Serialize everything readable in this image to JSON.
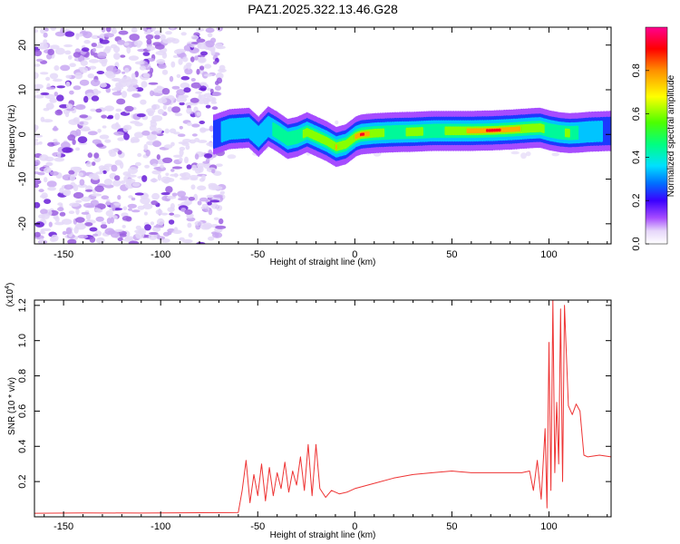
{
  "title": "PAZ1.2025.322.13.46.G28",
  "chart_data": [
    {
      "type": "heatmap",
      "name": "spectrogram",
      "xlabel": "Height of straight line (km)",
      "ylabel": "Frequency (Hz)",
      "xlim": [
        -165,
        132
      ],
      "ylim": [
        -24.5,
        24
      ],
      "xticks": [
        -150,
        -100,
        -50,
        0,
        50,
        100
      ],
      "xtick_labels": [
        "-150",
        "-100",
        "-50",
        "0",
        "50",
        "100"
      ],
      "yticks": [
        -20,
        -10,
        0,
        10,
        20
      ],
      "ytick_labels": [
        "-20",
        "-10",
        "0",
        "10",
        "20"
      ],
      "noise_region_x": [
        -165,
        -68
      ],
      "signal_track": {
        "x": [
          -73,
          -65,
          -55,
          -50,
          -45,
          -40,
          -35,
          -30,
          -25,
          -20,
          -15,
          -10,
          -5,
          0,
          3,
          10,
          20,
          30,
          40,
          50,
          60,
          70,
          80,
          90,
          95,
          100,
          105,
          110,
          115,
          120,
          132
        ],
        "freq": [
          0,
          1.2,
          1.5,
          -0.5,
          1.8,
          0.5,
          -1,
          -0.5,
          0.5,
          -0.5,
          -1.5,
          -2.8,
          -2.2,
          -0.5,
          0,
          0.3,
          0.5,
          0.6,
          0.8,
          0.8,
          0.8,
          0.9,
          1.1,
          1.4,
          1.5,
          0.9,
          0.5,
          0.3,
          0.4,
          0.6,
          0.8
        ],
        "amplitude": [
          0.3,
          0.35,
          0.4,
          0.35,
          0.4,
          0.45,
          0.5,
          0.55,
          0.6,
          0.65,
          0.7,
          0.75,
          0.7,
          0.75,
          0.95,
          0.6,
          0.55,
          0.6,
          0.55,
          0.6,
          0.8,
          0.95,
          0.85,
          0.6,
          0.7,
          0.45,
          0.55,
          0.6,
          0.4,
          0.35,
          0.3
        ]
      }
    },
    {
      "type": "line",
      "name": "snr",
      "xlabel": "Height of straight line (km)",
      "ylabel": "SNR (10 * v/v)",
      "scale_note": "(x10",
      "scale_exp": "4",
      "scale_close": ")",
      "xlim": [
        -165,
        132
      ],
      "ylim": [
        0,
        12300
      ],
      "xticks": [
        -150,
        -100,
        -50,
        0,
        50,
        100
      ],
      "xtick_labels": [
        "-150",
        "-100",
        "-50",
        "0",
        "50",
        "100"
      ],
      "yticks": [
        2000,
        4000,
        6000,
        8000,
        10000,
        12000
      ],
      "ytick_labels": [
        "0.2",
        "0.4",
        "0.6",
        "0.8",
        "1.0",
        "1.2"
      ],
      "series": [
        {
          "name": "SNR",
          "color": "#ee3333",
          "x": [
            -165,
            -140,
            -110,
            -80,
            -60,
            -58,
            -56,
            -54,
            -52,
            -50,
            -48,
            -46,
            -44,
            -42,
            -40,
            -38,
            -36,
            -34,
            -32,
            -30,
            -28,
            -26,
            -24,
            -22,
            -20,
            -18,
            -15,
            -12,
            -8,
            -4,
            0,
            10,
            20,
            30,
            40,
            50,
            60,
            70,
            80,
            86,
            90,
            92,
            94,
            96,
            98,
            99,
            100,
            101,
            102,
            103,
            104,
            105,
            106,
            107,
            108,
            110,
            112,
            114,
            116,
            118,
            120,
            126,
            132
          ],
          "y": [
            200,
            220,
            210,
            230,
            240,
            1500,
            3200,
            800,
            2400,
            1200,
            3000,
            900,
            2800,
            1200,
            2500,
            1600,
            3100,
            1400,
            2600,
            1800,
            3400,
            1500,
            4100,
            1200,
            4100,
            1600,
            1100,
            1500,
            1300,
            1400,
            1600,
            1900,
            2200,
            2400,
            2500,
            2600,
            2500,
            2500,
            2500,
            2500,
            2600,
            1500,
            3200,
            1000,
            5000,
            500,
            9900,
            1500,
            12300,
            2500,
            6500,
            3000,
            11800,
            2000,
            12000,
            6300,
            5800,
            6400,
            6000,
            3500,
            3400,
            3500,
            3400
          ]
        }
      ]
    },
    {
      "type": "colorbar",
      "name": "colorbar",
      "label": "Normalized spectral amplitude",
      "range": [
        0,
        1
      ],
      "ticks": [
        0,
        0.2,
        0.4,
        0.6,
        0.8
      ],
      "tick_labels": [
        "0.0",
        "0.2",
        "0.4",
        "0.6",
        "0.8"
      ]
    }
  ],
  "colors": {
    "line": "#ee3333",
    "noise": "#9b5fe0",
    "axes": "#000000"
  }
}
